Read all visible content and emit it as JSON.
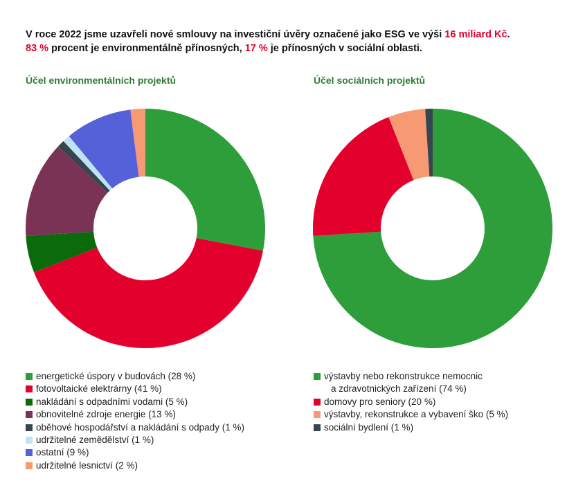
{
  "intro": {
    "line1_a": "V roce 2022 jsme uzavřeli nové smlouvy na investiční úvěry označené jako ESG ve výši ",
    "line1_hl": "16 miliard Kč",
    "line1_b": ".",
    "line2_hl1": "83 %",
    "line2_a": " procent je environmentálně přínosných, ",
    "line2_hl2": "17 %",
    "line2_b": " je přínosných v sociální oblasti."
  },
  "chart_data": [
    {
      "type": "pie",
      "title": "Účel environmentálních projektů",
      "categories": [
        "energetické úspory v budovách (28 %)",
        "fotovoltaické elektrárny (41 %)",
        "nakládání s odpadními vodami (5 %)",
        "obnovitelné zdroje energie (13 %)",
        "oběhové hospodářství a nakládání s odpady (1 %)",
        "udržitelné zemědělství (1 %)",
        "ostatní (9 %)",
        "udržitelné lesnictví (2 %)"
      ],
      "values": [
        28,
        41,
        5,
        13,
        1,
        1,
        9,
        2
      ],
      "colors": [
        "#2e9e3b",
        "#e3002d",
        "#0b6b0b",
        "#7b3355",
        "#36454f",
        "#bfe3f5",
        "#5561d9",
        "#f79a73"
      ],
      "legend": "bottom"
    },
    {
      "type": "pie",
      "title": "Účel sociálních projektů",
      "categories": [
        "výstavby nebo rekonstrukce nemocnic",
        "domovy pro seniory (20 %)",
        "výstavby, rekonstrukce a vybavení ško (5 %)",
        "sociální bydlení (1 %)"
      ],
      "category_continuation": [
        "a zdravotnických zařízení (74 %)",
        "",
        "",
        ""
      ],
      "values": [
        74,
        20,
        5,
        1
      ],
      "colors": [
        "#2e9e3b",
        "#e3002d",
        "#f79a73",
        "#36454f"
      ],
      "legend": "bottom"
    }
  ]
}
